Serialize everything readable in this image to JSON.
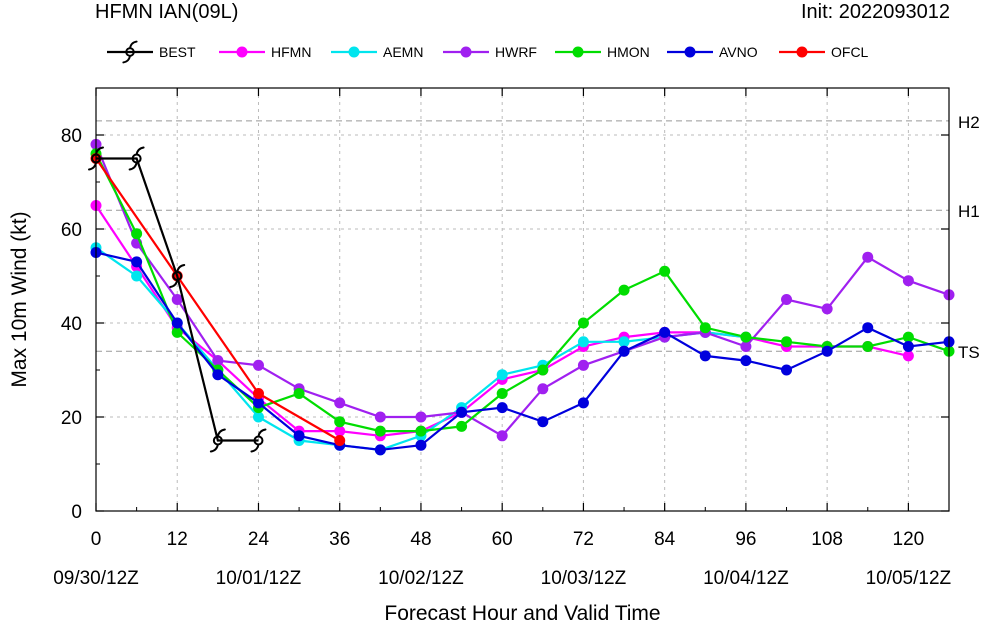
{
  "header": {
    "title": "HFMN IAN(09L)",
    "init": "Init: 2022093012"
  },
  "chart_data": {
    "type": "line",
    "xlabel": "Forecast Hour and Valid Time",
    "ylabel": "Max 10m Wind (kt)",
    "xlim": [
      0,
      126
    ],
    "ylim": [
      0,
      90
    ],
    "x_ticks": [
      0,
      12,
      24,
      36,
      48,
      60,
      72,
      84,
      96,
      108,
      120
    ],
    "x_tick_labels": [
      "0",
      "12",
      "24",
      "36",
      "48",
      "60",
      "72",
      "84",
      "96",
      "108",
      "120"
    ],
    "date_ticks": [
      {
        "x": 0,
        "label": "09/30/12Z"
      },
      {
        "x": 24,
        "label": "10/01/12Z"
      },
      {
        "x": 48,
        "label": "10/02/12Z"
      },
      {
        "x": 72,
        "label": "10/03/12Z"
      },
      {
        "x": 96,
        "label": "10/04/12Z"
      },
      {
        "x": 120,
        "label": "10/05/12Z"
      }
    ],
    "y_ticks": [
      0,
      20,
      40,
      60,
      80
    ],
    "y_tick_labels": [
      "0",
      "20",
      "40",
      "60",
      "80"
    ],
    "grid": true,
    "thresholds": [
      {
        "value": 34,
        "label": "TS"
      },
      {
        "value": 64,
        "label": "H1"
      },
      {
        "value": 83,
        "label": "H2"
      }
    ],
    "legend_position": "top",
    "series": [
      {
        "name": "BEST",
        "color": "#000000",
        "marker": "hurricane-symbol",
        "x": [
          0,
          6,
          12,
          18,
          24
        ],
        "values": [
          75,
          75,
          50,
          15,
          15
        ]
      },
      {
        "name": "HFMN",
        "color": "#ff00ff",
        "x": [
          0,
          6,
          12,
          18,
          24,
          30,
          36,
          42,
          48,
          54,
          60,
          66,
          72,
          78,
          84,
          90,
          96,
          102,
          108,
          114,
          120
        ],
        "values": [
          65,
          52,
          39,
          32,
          24,
          17,
          17,
          16,
          17,
          21,
          28,
          30,
          35,
          37,
          38,
          38,
          37,
          35,
          35,
          35,
          33
        ]
      },
      {
        "name": "AEMN",
        "color": "#00e5ee",
        "x": [
          0,
          6,
          12,
          18,
          24,
          30,
          36,
          42,
          48,
          54,
          60,
          66,
          72,
          78,
          84,
          90,
          96
        ],
        "values": [
          56,
          50,
          40,
          30,
          20,
          15,
          14,
          13,
          16,
          22,
          29,
          31,
          36,
          36,
          37,
          38,
          37
        ]
      },
      {
        "name": "HWRF",
        "color": "#a020f0",
        "x": [
          0,
          6,
          12,
          18,
          24,
          30,
          36,
          42,
          48,
          54,
          60,
          66,
          72,
          78,
          84,
          90,
          96,
          102,
          108,
          114,
          120,
          126
        ],
        "values": [
          78,
          57,
          45,
          32,
          31,
          26,
          23,
          20,
          20,
          21,
          16,
          26,
          31,
          34,
          37,
          38,
          35,
          45,
          43,
          54,
          49,
          46
        ]
      },
      {
        "name": "HMON",
        "color": "#00dd00",
        "x": [
          0,
          6,
          12,
          18,
          24,
          30,
          36,
          42,
          48,
          54,
          60,
          66,
          72,
          78,
          84,
          90,
          96,
          102,
          108,
          114,
          120,
          126
        ],
        "values": [
          76,
          59,
          38,
          30,
          22,
          25,
          19,
          17,
          17,
          18,
          25,
          30,
          40,
          47,
          51,
          39,
          37,
          36,
          35,
          35,
          37,
          34
        ]
      },
      {
        "name": "AVNO",
        "color": "#0000dd",
        "x": [
          0,
          6,
          12,
          18,
          24,
          30,
          36,
          42,
          48,
          54,
          60,
          66,
          72,
          78,
          84,
          90,
          96,
          102,
          108,
          114,
          120,
          126
        ],
        "values": [
          55,
          53,
          40,
          29,
          23,
          16,
          14,
          13,
          14,
          21,
          22,
          19,
          23,
          34,
          38,
          33,
          32,
          30,
          34,
          39,
          35,
          36
        ]
      },
      {
        "name": "OFCL",
        "color": "#ff0000",
        "x": [
          0,
          12,
          24,
          36
        ],
        "values": [
          75,
          50,
          25,
          15
        ]
      }
    ]
  }
}
